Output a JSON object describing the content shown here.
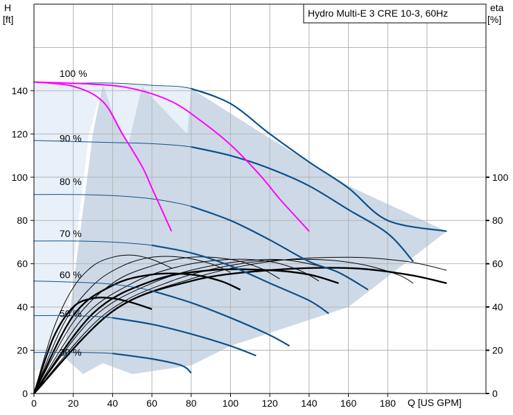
{
  "chart_data": {
    "type": "line",
    "title": "Hydro Multi-E 3 CRE 10-3, 60Hz",
    "xlabel": "Q [US GPM]",
    "ylabel_left_line1": "H",
    "ylabel_left_line2": "[ft]",
    "ylabel_right_line1": "eta",
    "ylabel_right_line2": "[%]",
    "xlim": [
      0,
      230
    ],
    "ylim_left": [
      0,
      180
    ],
    "ylim_right": [
      0,
      180
    ],
    "x_ticks": [
      0,
      20,
      40,
      60,
      80,
      100,
      120,
      140,
      160,
      180
    ],
    "x_tick_labels": [
      "0",
      "20",
      "40",
      "60",
      "80",
      "100",
      "120",
      "140",
      "160",
      "180"
    ],
    "y_ticks_left": [
      0,
      20,
      40,
      60,
      80,
      100,
      120,
      140
    ],
    "y_tick_labels_left": [
      "0",
      "20",
      "40",
      "60",
      "80",
      "100",
      "120",
      "140"
    ],
    "y_ticks_right": [
      0,
      20,
      40,
      60,
      80,
      100
    ],
    "y_tick_labels_right": [
      "0",
      "20",
      "40",
      "60",
      "80",
      "100"
    ],
    "grid": true,
    "speed_labels": [
      {
        "text": "100 %",
        "x": 13,
        "y": 148
      },
      {
        "text": "90 %",
        "x": 13,
        "y": 118
      },
      {
        "text": "80 %",
        "x": 13,
        "y": 98
      },
      {
        "text": "70 %",
        "x": 13,
        "y": 74
      },
      {
        "text": "60 %",
        "x": 13,
        "y": 55
      },
      {
        "text": "50 %",
        "x": 13,
        "y": 37
      },
      {
        "text": "30 %",
        "x": 13,
        "y": 19
      }
    ],
    "head_curves": [
      {
        "name": "100 %",
        "values": [
          [
            0,
            144
          ],
          [
            20,
            143.5
          ],
          [
            40,
            143.5
          ],
          [
            60,
            142.5
          ],
          [
            80,
            141
          ],
          [
            100,
            134
          ],
          [
            120,
            120
          ],
          [
            140,
            107
          ],
          [
            160,
            95
          ],
          [
            180,
            80
          ],
          [
            210,
            75
          ]
        ]
      },
      {
        "name": "90 %",
        "values": [
          [
            0,
            117
          ],
          [
            20,
            116.5
          ],
          [
            40,
            116
          ],
          [
            60,
            115.5
          ],
          [
            80,
            114
          ],
          [
            100,
            110
          ],
          [
            120,
            104
          ],
          [
            140,
            96
          ],
          [
            160,
            85
          ],
          [
            180,
            74
          ],
          [
            193,
            61
          ]
        ]
      },
      {
        "name": "80 %",
        "values": [
          [
            0,
            92
          ],
          [
            20,
            92
          ],
          [
            40,
            91.5
          ],
          [
            60,
            90
          ],
          [
            80,
            86.5
          ],
          [
            100,
            80
          ],
          [
            120,
            71
          ],
          [
            140,
            61
          ],
          [
            155,
            56
          ],
          [
            170,
            48
          ]
        ]
      },
      {
        "name": "70 %",
        "values": [
          [
            0,
            70.5
          ],
          [
            20,
            70.5
          ],
          [
            40,
            70
          ],
          [
            60,
            68.5
          ],
          [
            80,
            65
          ],
          [
            100,
            59
          ],
          [
            120,
            51
          ],
          [
            140,
            43
          ],
          [
            150,
            37
          ]
        ]
      },
      {
        "name": "60 %",
        "values": [
          [
            0,
            52
          ],
          [
            20,
            51.5
          ],
          [
            40,
            50.5
          ],
          [
            60,
            47.5
          ],
          [
            80,
            42
          ],
          [
            100,
            35
          ],
          [
            120,
            27
          ],
          [
            130,
            22
          ]
        ]
      },
      {
        "name": "50 %",
        "values": [
          [
            0,
            36
          ],
          [
            20,
            36
          ],
          [
            40,
            35
          ],
          [
            60,
            32
          ],
          [
            80,
            27.5
          ],
          [
            100,
            22
          ],
          [
            113,
            17.5
          ]
        ]
      },
      {
        "name": "30 %",
        "values": [
          [
            0,
            19
          ],
          [
            20,
            19
          ],
          [
            40,
            18.5
          ],
          [
            60,
            16
          ],
          [
            75,
            13
          ],
          [
            80,
            9.5
          ]
        ]
      }
    ],
    "constant_pressure_curves": [
      {
        "name": "magenta-1",
        "values": [
          [
            0,
            144
          ],
          [
            20,
            142
          ],
          [
            35,
            135
          ],
          [
            45,
            120
          ],
          [
            55,
            105
          ],
          [
            60,
            95
          ],
          [
            65,
            85
          ],
          [
            70,
            75
          ]
        ]
      },
      {
        "name": "magenta-2",
        "values": [
          [
            0,
            144
          ],
          [
            30,
            143
          ],
          [
            50,
            141
          ],
          [
            70,
            135
          ],
          [
            85,
            126
          ],
          [
            100,
            115
          ],
          [
            115,
            101
          ],
          [
            125,
            90
          ],
          [
            135,
            80
          ],
          [
            140,
            75
          ]
        ]
      }
    ],
    "efficiency_curves": [
      {
        "name": "eta-1",
        "values": [
          [
            0,
            0
          ],
          [
            10,
            30
          ],
          [
            20,
            49
          ],
          [
            30,
            59
          ],
          [
            40,
            63
          ],
          [
            50,
            64
          ],
          [
            60,
            62
          ],
          [
            70,
            58
          ]
        ]
      },
      {
        "name": "eta-2",
        "values": [
          [
            0,
            0
          ],
          [
            15,
            32
          ],
          [
            30,
            50
          ],
          [
            45,
            59
          ],
          [
            60,
            63
          ],
          [
            75,
            63
          ],
          [
            90,
            60
          ],
          [
            100,
            56
          ]
        ]
      },
      {
        "name": "eta-3",
        "values": [
          [
            0,
            0
          ],
          [
            20,
            33
          ],
          [
            40,
            51
          ],
          [
            60,
            59
          ],
          [
            80,
            63
          ],
          [
            100,
            62
          ],
          [
            115,
            58
          ],
          [
            125,
            53
          ]
        ]
      },
      {
        "name": "eta-4",
        "values": [
          [
            0,
            0
          ],
          [
            25,
            35
          ],
          [
            50,
            51
          ],
          [
            75,
            59
          ],
          [
            100,
            62
          ],
          [
            120,
            61
          ],
          [
            135,
            57
          ],
          [
            145,
            52
          ]
        ]
      },
      {
        "name": "eta-5",
        "values": [
          [
            0,
            0
          ],
          [
            30,
            35
          ],
          [
            60,
            51
          ],
          [
            90,
            59
          ],
          [
            120,
            62
          ],
          [
            140,
            60
          ],
          [
            155,
            56
          ],
          [
            165,
            51
          ]
        ]
      },
      {
        "name": "eta-6",
        "values": [
          [
            0,
            0
          ],
          [
            35,
            36
          ],
          [
            70,
            52
          ],
          [
            105,
            60
          ],
          [
            140,
            62
          ],
          [
            165,
            60
          ],
          [
            185,
            55
          ],
          [
            193,
            51
          ]
        ]
      },
      {
        "name": "eta-7",
        "values": [
          [
            0,
            0
          ],
          [
            40,
            38
          ],
          [
            80,
            53
          ],
          [
            120,
            61
          ],
          [
            160,
            63
          ],
          [
            190,
            61
          ],
          [
            210,
            57
          ]
        ]
      },
      {
        "name": "eta-thick-1",
        "values": [
          [
            0,
            0
          ],
          [
            10,
            26
          ],
          [
            20,
            40
          ],
          [
            30,
            44
          ],
          [
            40,
            44
          ],
          [
            50,
            42
          ],
          [
            60,
            39
          ]
        ]
      },
      {
        "name": "eta-thick-2",
        "values": [
          [
            0,
            0
          ],
          [
            20,
            36
          ],
          [
            40,
            50
          ],
          [
            60,
            55
          ],
          [
            80,
            55
          ],
          [
            95,
            52
          ],
          [
            105,
            48
          ]
        ]
      },
      {
        "name": "eta-thick-3",
        "values": [
          [
            0,
            0
          ],
          [
            30,
            37
          ],
          [
            60,
            52
          ],
          [
            90,
            57
          ],
          [
            120,
            57
          ],
          [
            140,
            55
          ],
          [
            155,
            51
          ]
        ]
      },
      {
        "name": "eta-thick-4",
        "values": [
          [
            0,
            0
          ],
          [
            40,
            38
          ],
          [
            80,
            52
          ],
          [
            120,
            57
          ],
          [
            160,
            58
          ],
          [
            190,
            55
          ],
          [
            210,
            51
          ]
        ]
      }
    ],
    "operating_region": [
      [
        0,
        144
      ],
      [
        40,
        143
      ],
      [
        80,
        141
      ],
      [
        120,
        118
      ],
      [
        160,
        96
      ],
      [
        210,
        75
      ],
      [
        160,
        40
      ],
      [
        100,
        22
      ],
      [
        80,
        13
      ],
      [
        50,
        9
      ],
      [
        35,
        14
      ],
      [
        25,
        9
      ],
      [
        15,
        17
      ],
      [
        20,
        50
      ],
      [
        30,
        120
      ],
      [
        35,
        143
      ]
    ],
    "colors": {
      "background": "#ffffff",
      "grid": "#b4b4b4",
      "region_light": "#e8f0fa",
      "region_main": "#cdd9e6",
      "head_curve": "#0b4f8a",
      "head_curve_thin": "#0b4f8a",
      "magenta": "#ff00ff",
      "efficiency": "#000000"
    }
  }
}
